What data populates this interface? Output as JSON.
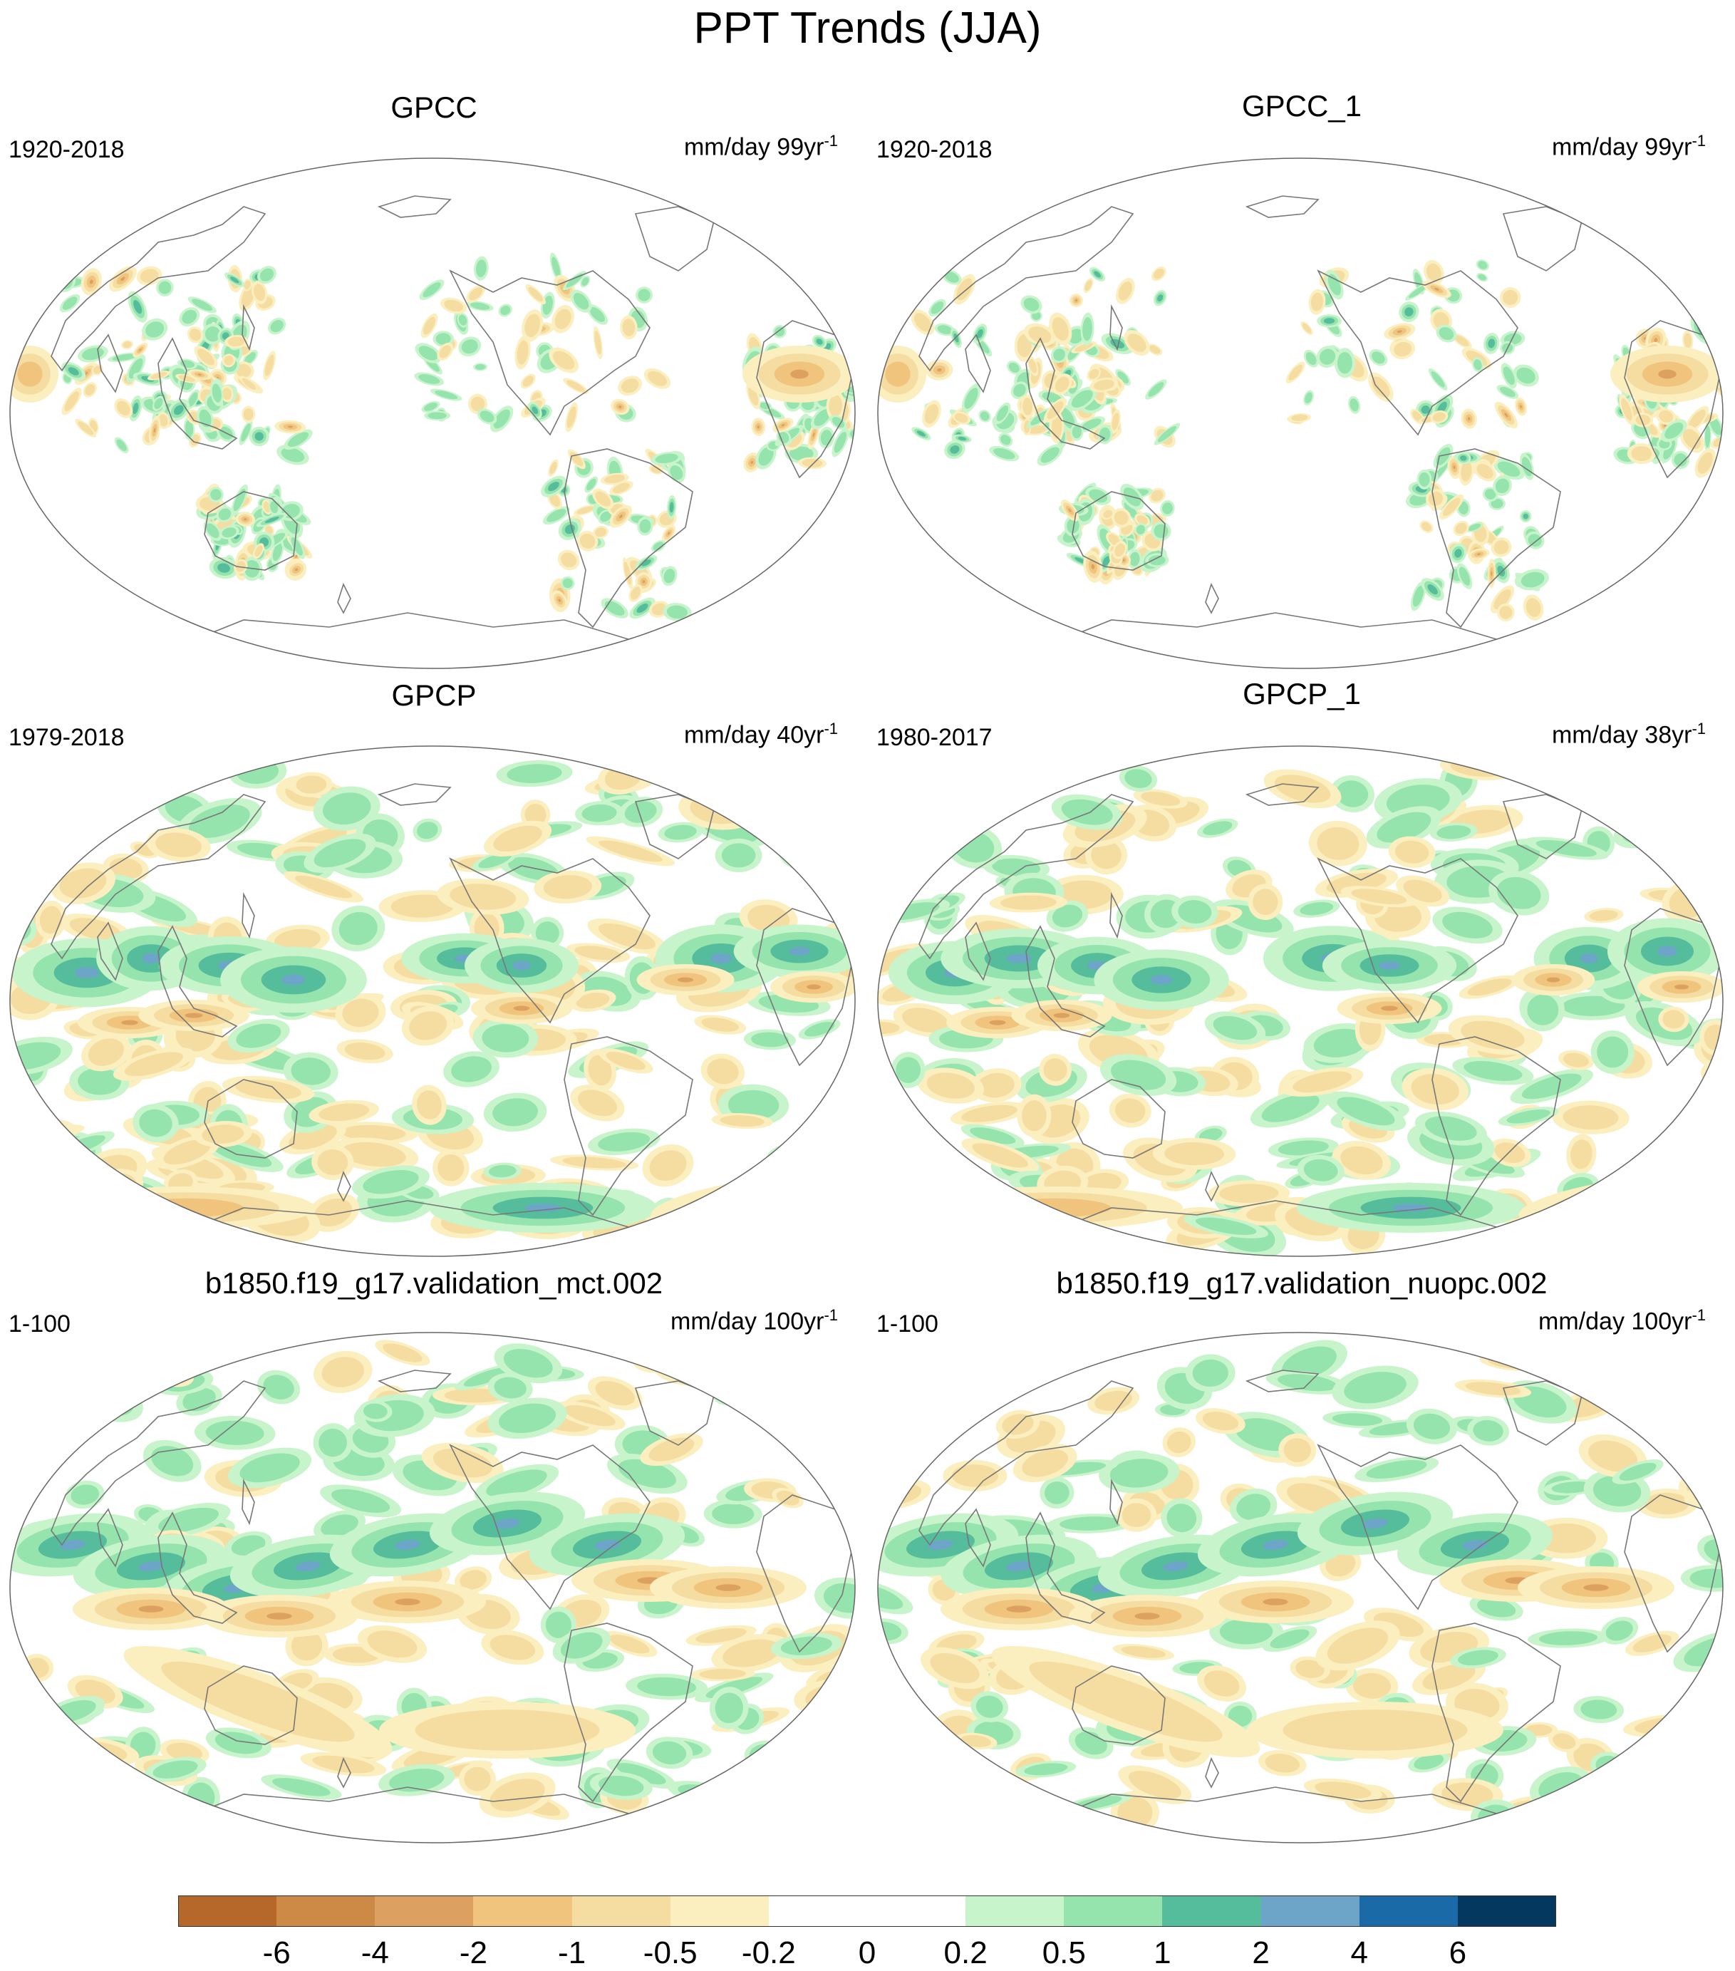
{
  "figure": {
    "title": "PPT Trends (JJA)"
  },
  "panels": [
    {
      "title": "GPCC",
      "period": "1920-2018",
      "units_text": "mm/day 99yr",
      "units_exp": "-1",
      "pattern": "land"
    },
    {
      "title": "GPCC_1",
      "period": "1920-2018",
      "units_text": "mm/day 99yr",
      "units_exp": "-1",
      "pattern": "land"
    },
    {
      "title": "GPCP",
      "period": "1979-2018",
      "units_text": "mm/day 40yr",
      "units_exp": "-1",
      "pattern": "obs"
    },
    {
      "title": "GPCP_1",
      "period": "1980-2017",
      "units_text": "mm/day 38yr",
      "units_exp": "-1",
      "pattern": "obs"
    },
    {
      "title": "b1850.f19_g17.validation_mct.002",
      "period": "1-100",
      "units_text": "mm/day 100yr",
      "units_exp": "-1",
      "pattern": "model"
    },
    {
      "title": "b1850.f19_g17.validation_nuopc.002",
      "period": "1-100",
      "units_text": "mm/day 100yr",
      "units_exp": "-1",
      "pattern": "model"
    }
  ],
  "colorbar": {
    "colors": [
      "#b5682a",
      "#cc8a46",
      "#dca060",
      "#f0c47c",
      "#f5dca0",
      "#fbeebf",
      "#ffffff",
      "#ffffff",
      "#c8f4cc",
      "#95e3ad",
      "#55bc9c",
      "#6ca5c8",
      "#1a6aa8",
      "#04385e"
    ],
    "labels": [
      "-6",
      "-4",
      "-2",
      "-1",
      "-0.5",
      "-0.2",
      "0",
      "0.2",
      "0.5",
      "1",
      "2",
      "4",
      "6"
    ]
  }
}
